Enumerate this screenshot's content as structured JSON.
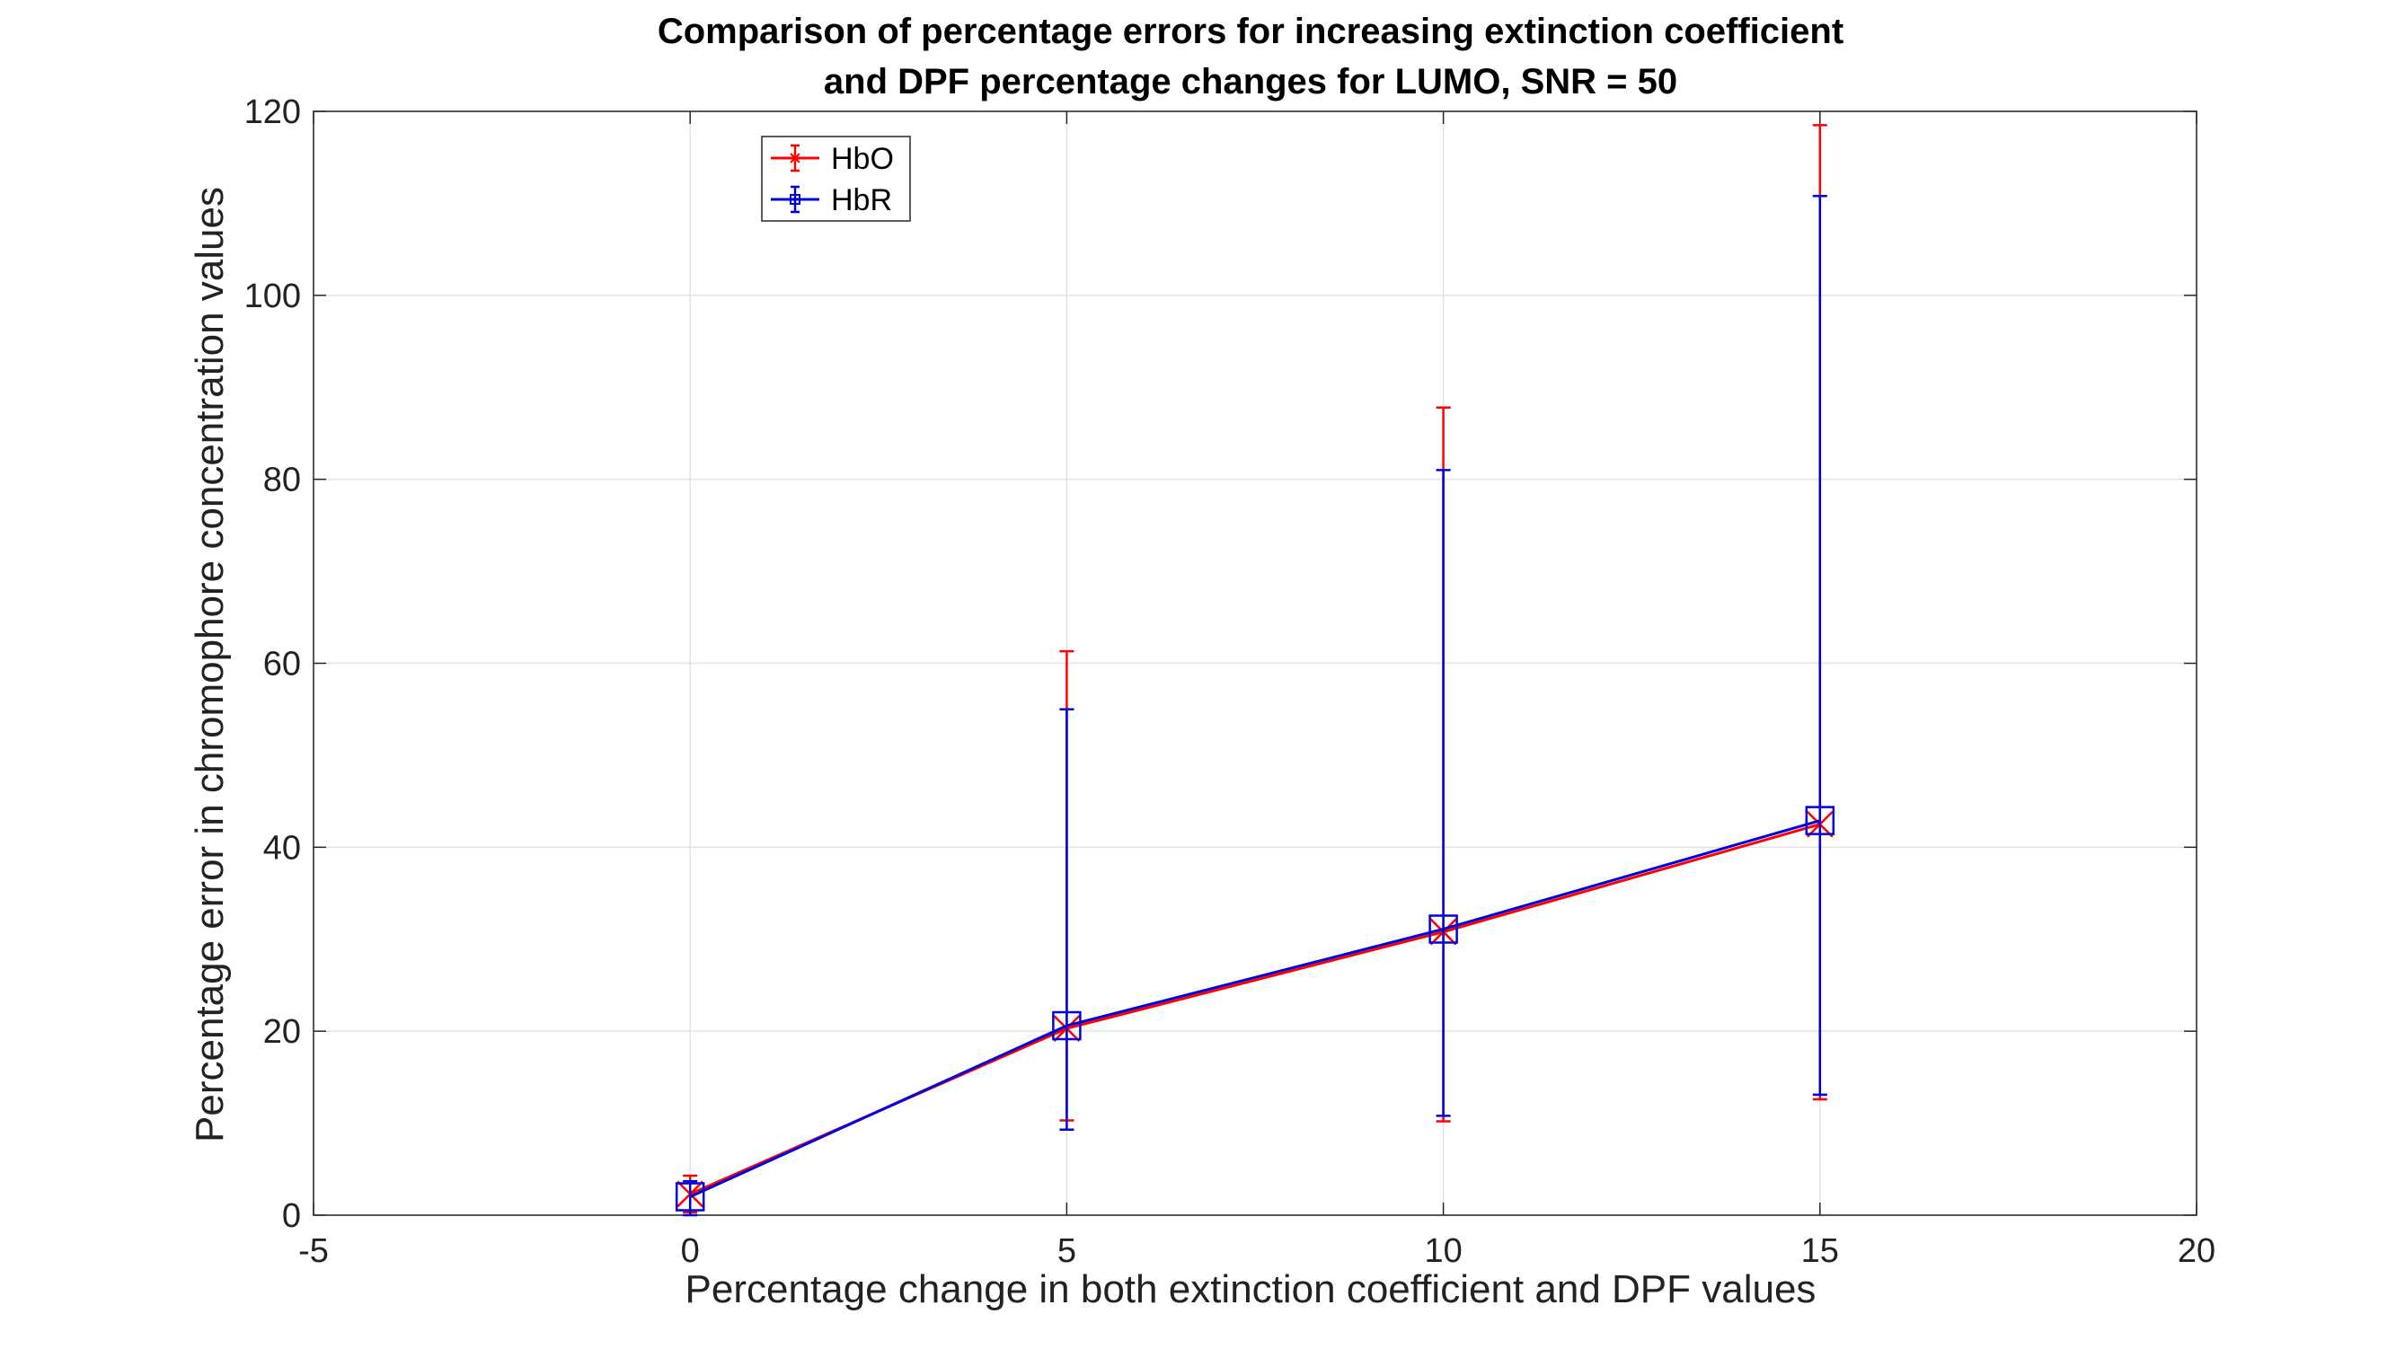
{
  "chart_data": {
    "type": "line",
    "title_lines": [
      "Comparison of percentage errors for increasing extinction coefficient",
      "and DPF percentage changes for LUMO, SNR = 50"
    ],
    "xlabel": "Percentage change in both extinction coefficient and DPF values",
    "ylabel": "Percentage error in chromophore concentration values",
    "xlim": [
      -5,
      20
    ],
    "ylim": [
      0,
      120
    ],
    "xticks": [
      "-5",
      "0",
      "5",
      "10",
      "15",
      "20"
    ],
    "yticks": [
      "0",
      "20",
      "40",
      "60",
      "80",
      "100",
      "120"
    ],
    "grid": true,
    "legend_position": "top-left",
    "x": [
      0,
      5,
      10,
      15
    ],
    "series": [
      {
        "name": "HbO",
        "color": "#ff0000",
        "marker": "x",
        "values": [
          2.3,
          20.3,
          30.8,
          42.5
        ],
        "err_low": [
          0.3,
          10.3,
          10.2,
          12.6
        ],
        "err_high": [
          4.3,
          61.3,
          87.8,
          118.5
        ]
      },
      {
        "name": "HbR",
        "color": "#0000dd",
        "marker": "square",
        "values": [
          2.0,
          20.6,
          31.1,
          42.9
        ],
        "err_low": [
          0.0,
          9.3,
          10.8,
          13.1
        ],
        "err_high": [
          3.7,
          55.0,
          81.0,
          110.8
        ]
      }
    ]
  }
}
